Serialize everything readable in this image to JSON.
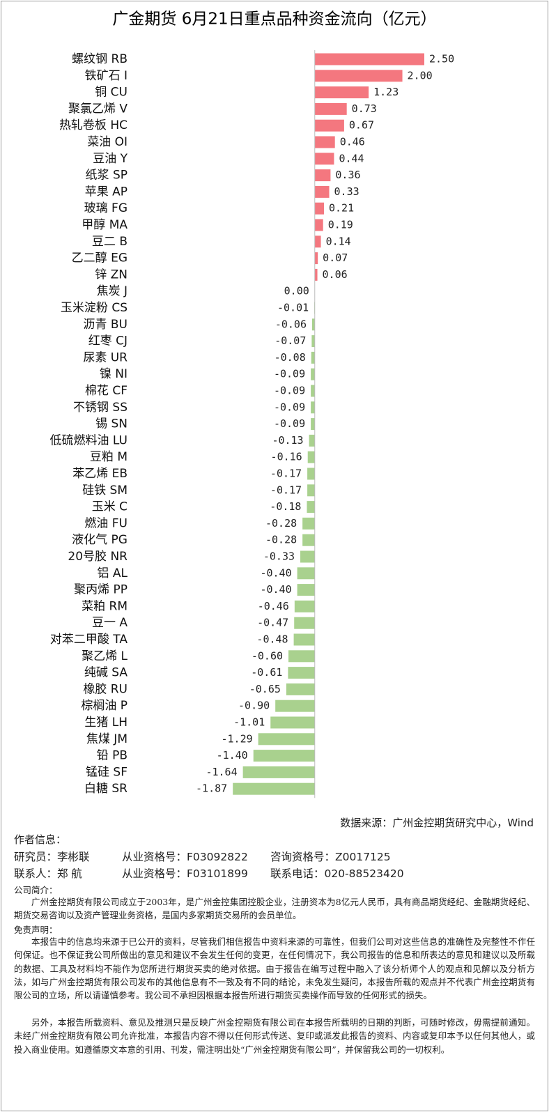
{
  "chart_data": {
    "type": "bar",
    "orientation": "horizontal",
    "title": "广金期货 6月21日重点品种资金流向（亿元）",
    "categories": [
      "螺纹钢 RB",
      "铁矿石 I",
      "铜 CU",
      "聚氯乙烯 V",
      "热轧卷板 HC",
      "菜油 OI",
      "豆油 Y",
      "纸浆 SP",
      "苹果 AP",
      "玻璃 FG",
      "甲醇 MA",
      "豆二 B",
      "乙二醇 EG",
      "锌 ZN",
      "焦炭 J",
      "玉米淀粉 CS",
      "沥青 BU",
      "红枣 CJ",
      "尿素 UR",
      "镍 NI",
      "棉花 CF",
      "不锈钢 SS",
      "锡 SN",
      "低硫燃料油 LU",
      "豆粕 M",
      "苯乙烯 EB",
      "硅铁 SM",
      "玉米 C",
      "燃油 FU",
      "液化气 PG",
      "20号胶 NR",
      "铝 AL",
      "聚丙烯 PP",
      "菜粕 RM",
      "豆一 A",
      "对苯二甲酸 TA",
      "聚乙烯 L",
      "纯碱 SA",
      "橡胶 RU",
      "棕榈油 P",
      "生猪 LH",
      "焦煤 JM",
      "铅 PB",
      "锰硅 SF",
      "白糖 SR"
    ],
    "values": [
      2.5,
      2,
      1.23,
      0.73,
      0.67,
      0.46,
      0.44,
      0.36,
      0.33,
      0.21,
      0.19,
      0.14,
      0.07,
      0.06,
      0,
      -0.01,
      -0.06,
      -0.07,
      -0.08,
      -0.09,
      -0.09,
      -0.09,
      -0.09,
      -0.13,
      -0.16,
      -0.17,
      -0.17,
      -0.18,
      -0.28,
      -0.28,
      -0.33,
      -0.4,
      -0.4,
      -0.46,
      -0.47,
      -0.48,
      -0.6,
      -0.61,
      -0.65,
      -0.9,
      -1.01,
      -1.29,
      -1.4,
      -1.64,
      -1.87
    ],
    "value_labels": [
      "2.50",
      "2.00",
      "1.23",
      "0.73",
      "0.67",
      "0.46",
      "0.44",
      "0.36",
      "0.33",
      "0.21",
      "0.19",
      "0.14",
      "0.07",
      "0.06",
      "0.00",
      "-0.01",
      "-0.06",
      "-0.07",
      "-0.08",
      "-0.09",
      "-0.09",
      "-0.09",
      "-0.09",
      "-0.13",
      "-0.16",
      "-0.17",
      "-0.17",
      "-0.18",
      "-0.28",
      "-0.28",
      "-0.33",
      "-0.40",
      "-0.40",
      "-0.46",
      "-0.47",
      "-0.48",
      "-0.60",
      "-0.61",
      "-0.65",
      "-0.90",
      "-1.01",
      "-1.29",
      "-1.40",
      "-1.64",
      "-1.87"
    ],
    "positive_color": "#f4777f",
    "negative_color": "#a9d18e",
    "xlim": [
      -2,
      2.5
    ]
  },
  "notes": {
    "source": "数据来源：广州金控期货研究中心，Wind",
    "author_heading": "作者信息：",
    "researcher": [
      "研究员：李彬联",
      "从业资格号：F03092822",
      "咨询资格号：Z0017125"
    ],
    "contact": [
      "联系人：郑 航",
      "从业资格号：F03101899",
      "联系电话：020-88523420"
    ],
    "company_heading": "公司简介：",
    "company_text": "广州金控期货有限公司成立于2003年，是广州金控集团控股企业，注册资本为8亿元人民币，具有商品期货经纪、金融期货经纪、期货交易咨询以及资产管理业务资格，是国内多家期货交易所的会员单位。",
    "disclaimer_heading": "免责声明：",
    "disclaimer_paragraphs": [
      "本报告中的信息均来源于已公开的资料，尽管我们相信报告中资料来源的可靠性，但我们公司对这些信息的准确性及完整性不作任何保证。也不保证我公司所做出的意见和建议不会发生任何的变更，在任何情况下，我公司报告的信息和所表达的意见和建议以及所载的数据、工具及材料均不能作为您所进行期货买卖的绝对依据。由于报告在编写过程中融入了该分析师个人的观点和见解以及分析方法，如与广州金控期货有限公司发布的其他信息有不一致及有不同的结论，未免发生疑问，本报告所载的观点并不代表广州金控期货有限公司的立场，所以请谨慎参考。我公司不承担因根据本报告所进行期货买卖操作而导致的任何形式的损失。",
      "另外，本报告所载资料、意见及推测只是反映广州金控期货有限公司在本报告所载明的日期的判断，可随时修改，毋需提前通知。未经广州金控期货有限公司允许批准，本报告内容不得以任何形式传送、复印或派发此报告的资料、内容或复印本予以任何其他人，或投入商业使用。如遵循原文本意的引用、刊发，需注明出处“广州金控期货有限公司”，并保留我公司的一切权利。"
    ]
  }
}
